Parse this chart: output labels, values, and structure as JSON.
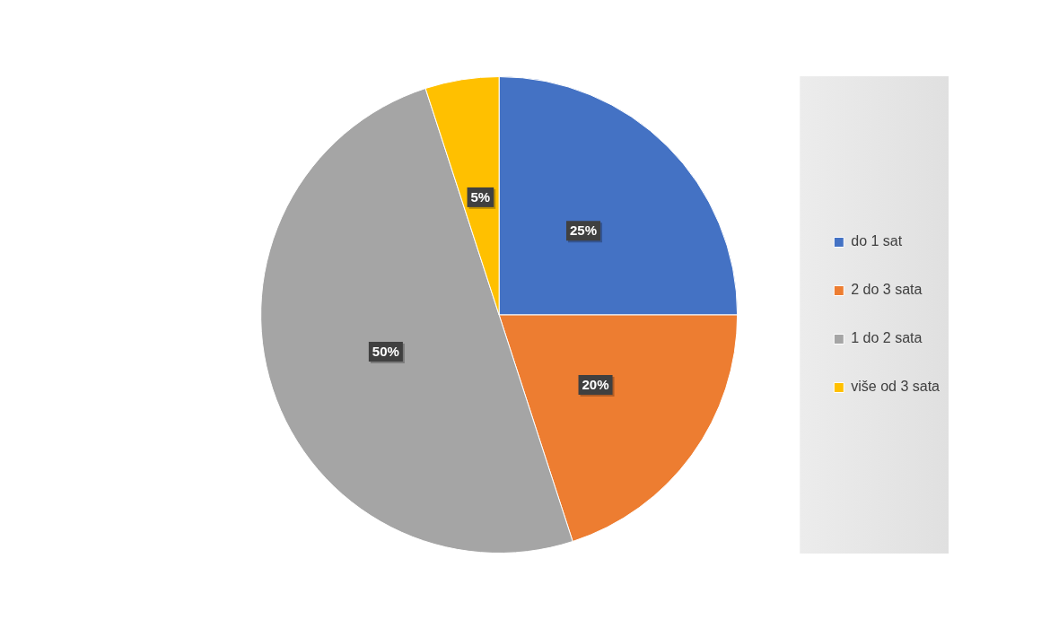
{
  "chart_data": {
    "type": "pie",
    "categories": [
      "do 1 sat",
      "2 do 3 sata",
      "1 do 2 sata",
      "više od 3 sata"
    ],
    "values": [
      25,
      20,
      50,
      5
    ],
    "colors": [
      "#4472c4",
      "#ed7d31",
      "#a5a5a5",
      "#ffc000"
    ],
    "value_labels": [
      "25%",
      "20%",
      "50%",
      "5%"
    ],
    "legend": "right"
  }
}
